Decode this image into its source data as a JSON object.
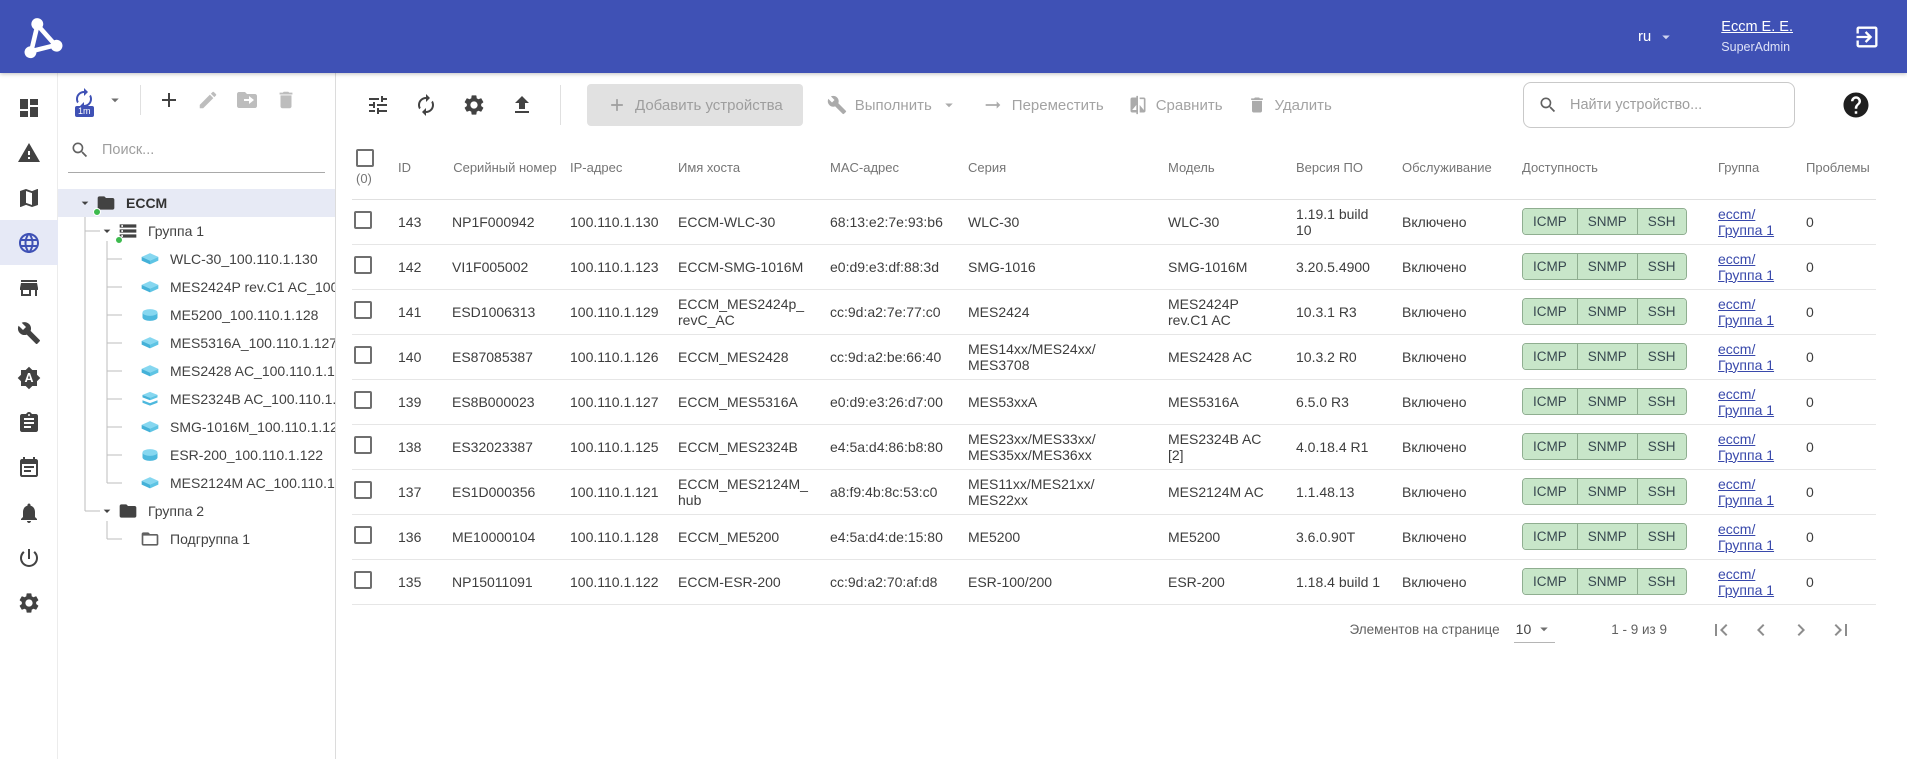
{
  "header": {
    "language": "ru",
    "user_name": "Eccm E. E.",
    "user_role": "SuperAdmin"
  },
  "rail": {
    "items": [
      {
        "icon": "dashboard",
        "active": false
      },
      {
        "icon": "warning",
        "active": false
      },
      {
        "icon": "map",
        "active": false
      },
      {
        "icon": "globe",
        "active": true
      },
      {
        "icon": "storefront",
        "active": false
      },
      {
        "icon": "wrench",
        "active": false
      },
      {
        "icon": "brightness-auto",
        "active": false
      },
      {
        "icon": "clipboard",
        "active": false
      },
      {
        "icon": "calendar",
        "active": false
      },
      {
        "icon": "bell",
        "active": false
      },
      {
        "icon": "power",
        "active": false
      },
      {
        "icon": "gear",
        "active": false
      }
    ]
  },
  "tree_panel": {
    "toolbar": {
      "refresh_badge": "1m"
    },
    "search_placeholder": "Поиск...",
    "items": [
      {
        "label": "ECCM",
        "level": 0,
        "icon": "folder",
        "caret": true,
        "dot": true,
        "selected": true
      },
      {
        "label": "Группа 1",
        "level": 1,
        "icon": "rack",
        "caret": true,
        "dot": true
      },
      {
        "label": "WLC-30_100.110.1.130",
        "level": 2,
        "icon": "switch"
      },
      {
        "label": "MES2424P rev.C1 AC_100",
        "level": 2,
        "icon": "switch"
      },
      {
        "label": "ME5200_100.110.1.128",
        "level": 2,
        "icon": "router"
      },
      {
        "label": "MES5316A_100.110.1.127",
        "level": 2,
        "icon": "switch"
      },
      {
        "label": "MES2428 AC_100.110.1.1",
        "level": 2,
        "icon": "switch"
      },
      {
        "label": "MES2324B AC_100.110.1.",
        "level": 2,
        "icon": "stack"
      },
      {
        "label": "SMG-1016M_100.110.1.12",
        "level": 2,
        "icon": "switch"
      },
      {
        "label": "ESR-200_100.110.1.122",
        "level": 2,
        "icon": "router"
      },
      {
        "label": "MES2124M AC_100.110.1",
        "level": 2,
        "icon": "switch"
      },
      {
        "label": "Группа 2",
        "level": 1,
        "icon": "folder",
        "caret": true
      },
      {
        "label": "Подгруппа 1",
        "level": 2,
        "icon": "folder-outline"
      }
    ]
  },
  "toolbar": {
    "add_label": "Добавить устройства",
    "execute_label": "Выполнить",
    "move_label": "Переместить",
    "compare_label": "Сравнить",
    "delete_label": "Удалить",
    "search_placeholder": "Найти устройство..."
  },
  "table": {
    "selected_count": "(0)",
    "columns": [
      {
        "key": "cb",
        "label": ""
      },
      {
        "key": "id",
        "label": "ID"
      },
      {
        "key": "serial",
        "label": "Серийный номер"
      },
      {
        "key": "ip",
        "label": "IP-адрес"
      },
      {
        "key": "hostname",
        "label": "Имя хоста"
      },
      {
        "key": "mac",
        "label": "MAC-адрес"
      },
      {
        "key": "series",
        "label": "Серия"
      },
      {
        "key": "model",
        "label": "Модель"
      },
      {
        "key": "firmware",
        "label": "Версия ПО"
      },
      {
        "key": "service",
        "label": "Обслуживание"
      },
      {
        "key": "availability",
        "label": "Доступность"
      },
      {
        "key": "group",
        "label": "Группа"
      },
      {
        "key": "problems",
        "label": "Проблемы"
      }
    ],
    "rows": [
      {
        "id": "143",
        "serial": "NP1F000942",
        "ip": "100.110.1.130",
        "hostname": "ECCM-WLC-30",
        "mac": "68:13:e2:7e:93:b6",
        "series": "WLC-30",
        "model": "WLC-30",
        "firmware": [
          "1.19.1 build",
          "10"
        ],
        "service": "Включено",
        "availability": [
          "ICMP",
          "SNMP",
          "SSH"
        ],
        "group": [
          "eccm/",
          "Группа 1"
        ],
        "problems": "0"
      },
      {
        "id": "142",
        "serial": "VI1F005002",
        "ip": "100.110.1.123",
        "hostname": "ECCM-SMG-1016M",
        "mac": "e0:d9:e3:df:88:3d",
        "series": "SMG-1016",
        "model": "SMG-1016M",
        "firmware": "3.20.5.4900",
        "service": "Включено",
        "availability": [
          "ICMP",
          "SNMP",
          "SSH"
        ],
        "group": [
          "eccm/",
          "Группа 1"
        ],
        "problems": "0"
      },
      {
        "id": "141",
        "serial": "ESD1006313",
        "ip": "100.110.1.129",
        "hostname": [
          "ECCM_MES2424p_",
          "revC_AC"
        ],
        "mac": "cc:9d:a2:7e:77:c0",
        "series": "MES2424",
        "model": [
          "MES2424P",
          "rev.C1 AC"
        ],
        "firmware": "10.3.1 R3",
        "service": "Включено",
        "availability": [
          "ICMP",
          "SNMP",
          "SSH"
        ],
        "group": [
          "eccm/",
          "Группа 1"
        ],
        "problems": "0"
      },
      {
        "id": "140",
        "serial": "ES87085387",
        "ip": "100.110.1.126",
        "hostname": "ECCM_MES2428",
        "mac": "cc:9d:a2:be:66:40",
        "series": [
          "MES14xx/MES24xx/",
          "MES3708"
        ],
        "model": "MES2428 AC",
        "firmware": "10.3.2 R0",
        "service": "Включено",
        "availability": [
          "ICMP",
          "SNMP",
          "SSH"
        ],
        "group": [
          "eccm/",
          "Группа 1"
        ],
        "problems": "0"
      },
      {
        "id": "139",
        "serial": "ES8B000023",
        "ip": "100.110.1.127",
        "hostname": "ECCM_MES5316A",
        "mac": "e0:d9:e3:26:d7:00",
        "series": "MES53xxA",
        "model": "MES5316A",
        "firmware": "6.5.0 R3",
        "service": "Включено",
        "availability": [
          "ICMP",
          "SNMP",
          "SSH"
        ],
        "group": [
          "eccm/",
          "Группа 1"
        ],
        "problems": "0"
      },
      {
        "id": "138",
        "serial": "ES32023387",
        "ip": "100.110.1.125",
        "hostname": "ECCM_MES2324B",
        "mac": "e4:5a:d4:86:b8:80",
        "series": [
          "MES23xx/MES33xx/",
          "MES35xx/MES36xx"
        ],
        "model": [
          "MES2324B AC",
          "[2]"
        ],
        "firmware": "4.0.18.4 R1",
        "service": "Включено",
        "availability": [
          "ICMP",
          "SNMP",
          "SSH"
        ],
        "group": [
          "eccm/",
          "Группа 1"
        ],
        "problems": "0"
      },
      {
        "id": "137",
        "serial": "ES1D000356",
        "ip": "100.110.1.121",
        "hostname": [
          "ECCM_MES2124M_",
          "hub"
        ],
        "mac": "a8:f9:4b:8c:53:c0",
        "series": [
          "MES11xx/MES21xx/",
          "MES22xx"
        ],
        "model": "MES2124M AC",
        "firmware": "1.1.48.13",
        "service": "Включено",
        "availability": [
          "ICMP",
          "SNMP",
          "SSH"
        ],
        "group": [
          "eccm/",
          "Группа 1"
        ],
        "problems": "0"
      },
      {
        "id": "136",
        "serial": "ME10000104",
        "ip": "100.110.1.128",
        "hostname": "ECCM_ME5200",
        "mac": "e4:5a:d4:de:15:80",
        "series": "ME5200",
        "model": "ME5200",
        "firmware": "3.6.0.90T",
        "service": "Включено",
        "availability": [
          "ICMP",
          "SNMP",
          "SSH"
        ],
        "group": [
          "eccm/",
          "Группа 1"
        ],
        "problems": "0"
      },
      {
        "id": "135",
        "serial": "NP15011091",
        "ip": "100.110.1.122",
        "hostname": "ECCM-ESR-200",
        "mac": "cc:9d:a2:70:af:d8",
        "series": "ESR-100/200",
        "model": "ESR-200",
        "firmware": "1.18.4 build 1",
        "service": "Включено",
        "availability": [
          "ICMP",
          "SNMP",
          "SSH"
        ],
        "group": [
          "eccm/",
          "Группа 1"
        ],
        "problems": "0"
      }
    ]
  },
  "pagination": {
    "items_per_page_label": "Элементов на странице",
    "items_per_page": "10",
    "range": "1 - 9 из 9"
  },
  "colors": {
    "header_bg": "#3f51b5",
    "accent": "#3f51b5",
    "chip_bg": "#c8e6c9",
    "link": "#3949ab",
    "green_dot": "#3dba4e",
    "device_blue": "#5ec4e4"
  }
}
